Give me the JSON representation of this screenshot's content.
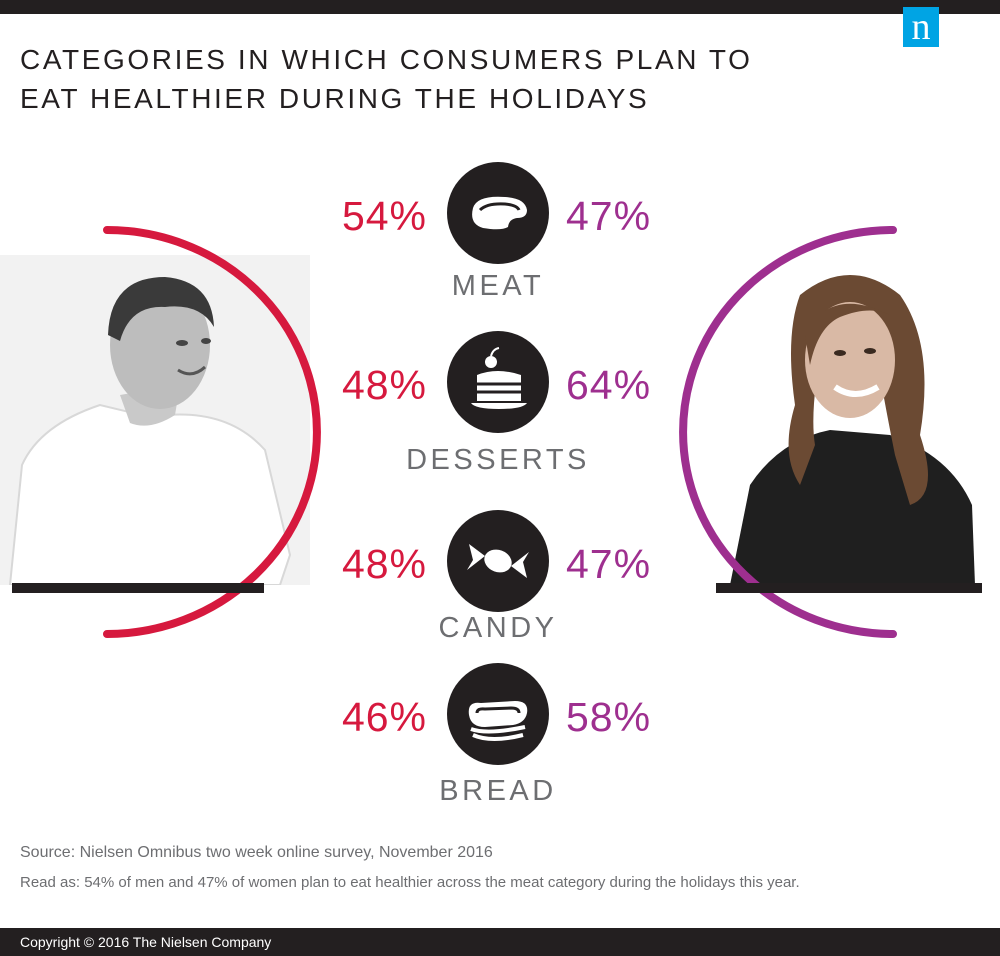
{
  "title": {
    "line1": "CATEGORIES IN WHICH CONSUMERS PLAN TO",
    "line2": "EAT HEALTHIER DURING THE HOLIDAYS"
  },
  "logo": {
    "text": "n",
    "icon": "nielsen-n-logo",
    "color": "#00a4e4"
  },
  "colors": {
    "men": "#d6193e",
    "women": "#9e2f8f",
    "dark": "#231f20",
    "category_label": "#6d6e71"
  },
  "chart_data": {
    "type": "table",
    "categories": [
      "MEAT",
      "DESSERTS",
      "CANDY",
      "BREAD"
    ],
    "icons": [
      "steak-icon",
      "cake-slice-icon",
      "candy-icon",
      "sandwich-icon"
    ],
    "series": [
      {
        "key": "men",
        "values": [
          54,
          48,
          48,
          46
        ],
        "labels": [
          "54%",
          "48%",
          "48%",
          "46%"
        ]
      },
      {
        "key": "women",
        "values": [
          47,
          64,
          47,
          58
        ],
        "labels": [
          "47%",
          "64%",
          "47%",
          "58%"
        ]
      }
    ]
  },
  "source": "Source: Nielsen Omnibus two week online survey, November 2016",
  "read_as": "Read as: 54% of men and 47% of women plan to eat healthier across the meat category during the holidays this year.",
  "footer": {
    "copyright": "Copyright © 2016 The Nielsen Company"
  }
}
